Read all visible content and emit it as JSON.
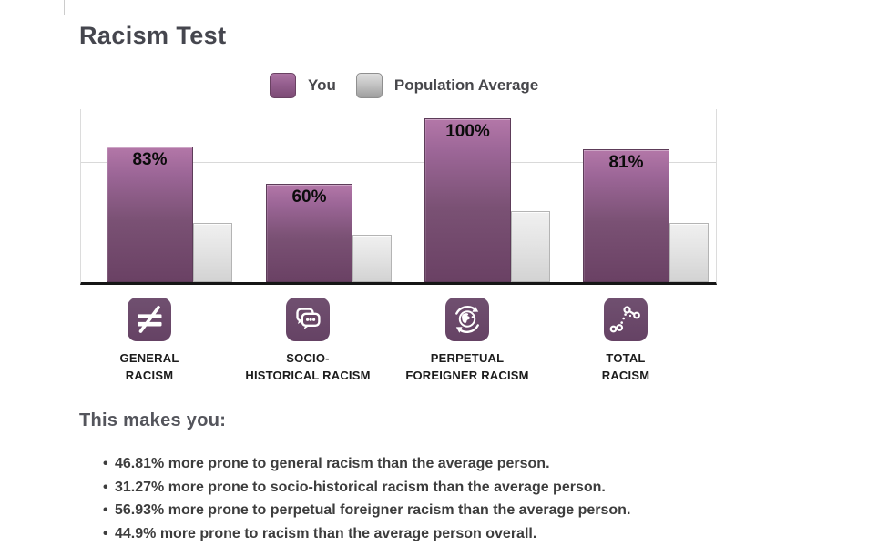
{
  "title": "Racism Test",
  "legend": {
    "you_label": "You",
    "population_label": "Population Average",
    "you_color": "#8e5687",
    "population_color": "#c2c2c2"
  },
  "chart_data": {
    "type": "bar",
    "title": "Racism Test",
    "categories": [
      "General Racism",
      "Socio-Historical Racism",
      "Perpetual Foreigner Racism",
      "Total Racism"
    ],
    "series": [
      {
        "name": "You",
        "values": [
          83,
          60,
          100,
          81
        ]
      },
      {
        "name": "Population Average",
        "values": [
          36.2,
          28.7,
          43.1,
          36.1
        ]
      }
    ],
    "value_labels": [
      "83%",
      "60%",
      "100%",
      "81%"
    ],
    "ylim": [
      0,
      100
    ],
    "grid": true,
    "legend_position": "top",
    "category_labels": [
      {
        "line1": "GENERAL",
        "line2": "RACISM",
        "icon": "not-equal-icon"
      },
      {
        "line1": "SOCIO-",
        "line2": "HISTORICAL RACISM",
        "icon": "chat-bubbles-icon"
      },
      {
        "line1": "PERPETUAL",
        "line2": "FOREIGNER RACISM",
        "icon": "globe-cycle-icon"
      },
      {
        "line1": "TOTAL",
        "line2": "RACISM",
        "icon": "connected-dots-icon"
      }
    ]
  },
  "summary": {
    "heading": "This makes you:",
    "bullets": [
      "46.81% more prone to general racism than the average person.",
      "31.27% more prone to socio-historical racism than the average person.",
      "56.93% more prone to perpetual foreigner racism than the average person.",
      "44.9% more prone to racism than the average person overall."
    ]
  }
}
